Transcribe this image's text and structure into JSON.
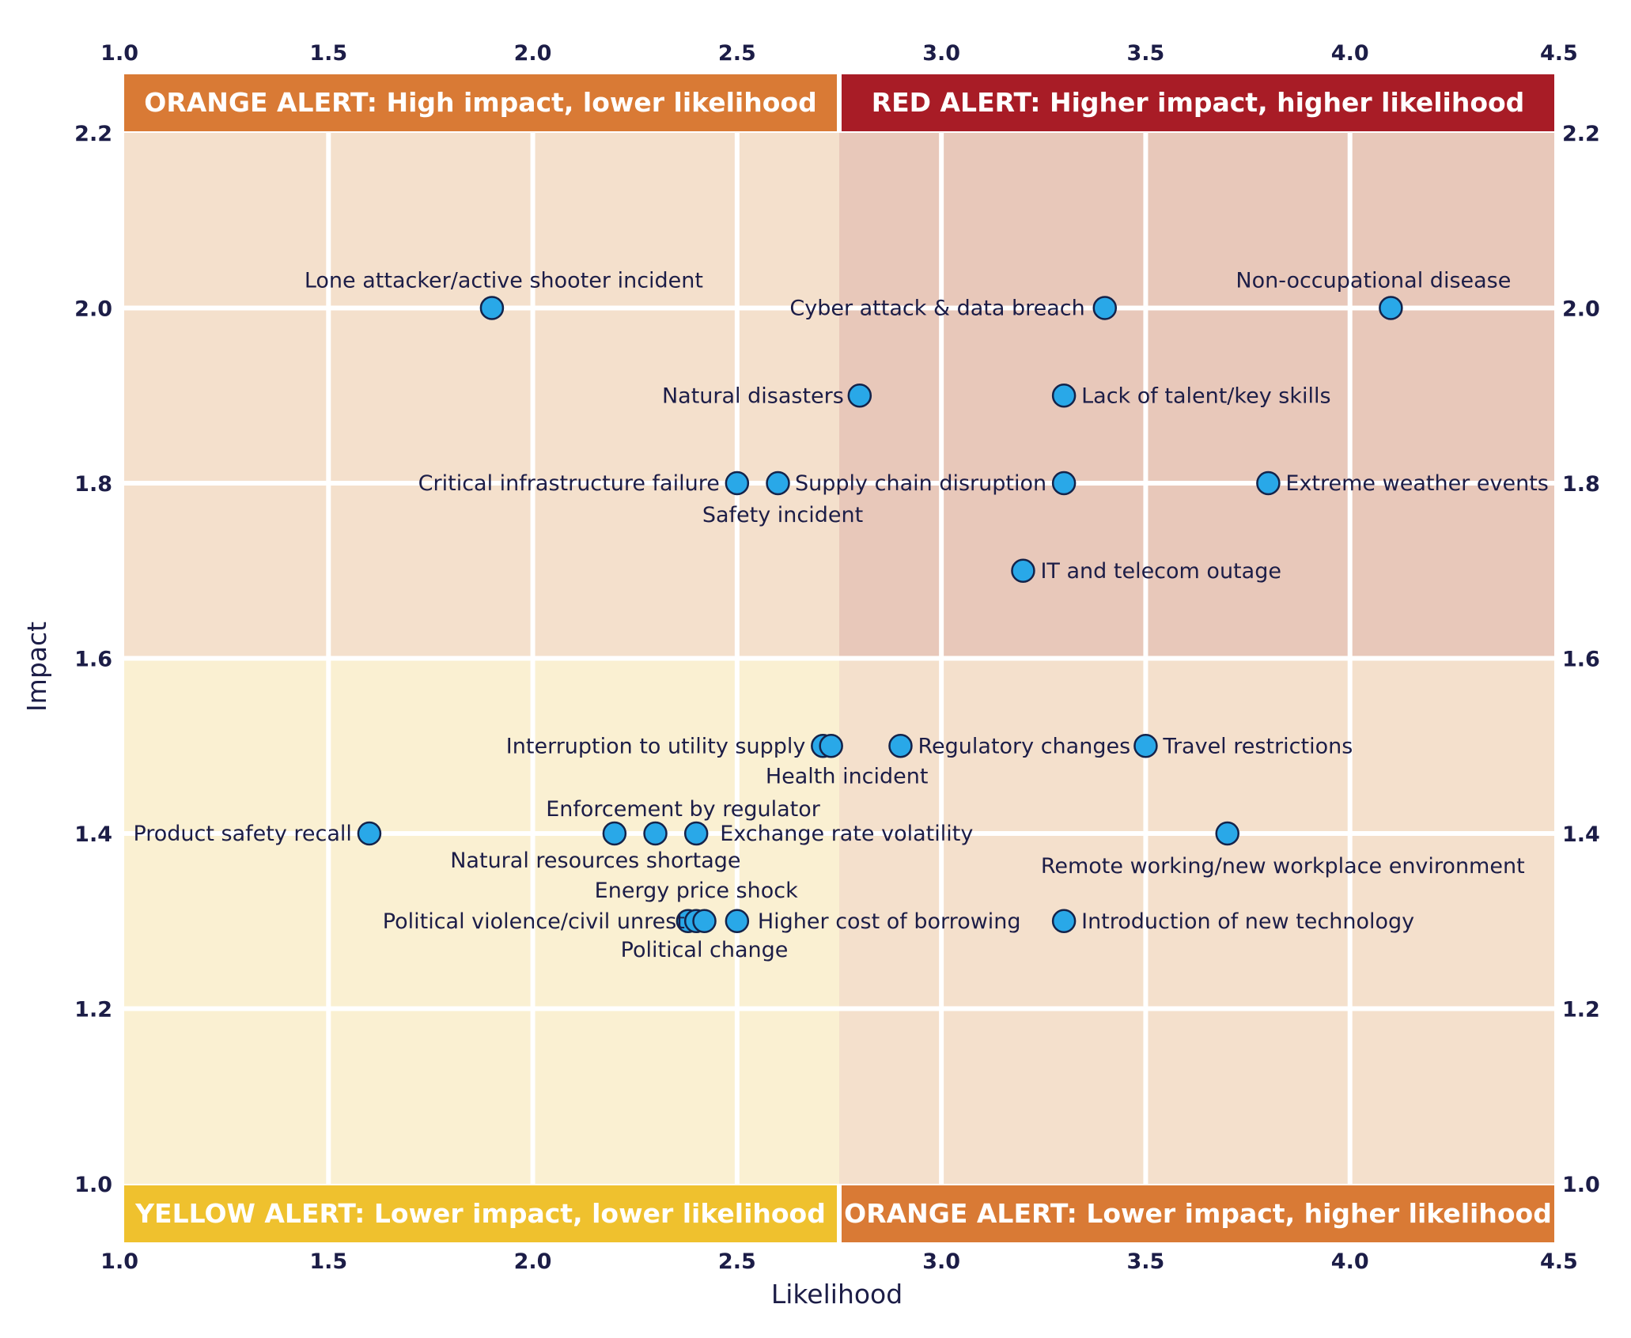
{
  "chart_data": {
    "type": "scatter",
    "xlabel": "Likelihood",
    "ylabel": "Impact",
    "xlim": [
      1.0,
      4.5
    ],
    "ylim": [
      1.0,
      2.2
    ],
    "x_ticks": [
      "1.0",
      "1.5",
      "2.0",
      "2.5",
      "3.0",
      "3.5",
      "4.0",
      "4.5"
    ],
    "y_ticks": [
      "1.0",
      "1.2",
      "1.4",
      "1.6",
      "1.8",
      "2.0",
      "2.2"
    ],
    "x_divider": 2.75,
    "y_divider": 1.6,
    "grid": true,
    "marker_color": "#29a8e8",
    "quadrants": [
      {
        "id": "top-left",
        "label": "ORANGE ALERT: High impact, lower likelihood",
        "banner_color": "#d97a35",
        "area_color": "#f4e0cc"
      },
      {
        "id": "top-right",
        "label": "RED ALERT: Higher impact, higher likelihood",
        "banner_color": "#a81c26",
        "area_color": "#e8c8ba"
      },
      {
        "id": "bottom-left",
        "label": "YELLOW ALERT: Lower impact, lower likelihood",
        "banner_color": "#efc12e",
        "area_color": "#faf0d2"
      },
      {
        "id": "bottom-right",
        "label": "ORANGE ALERT: Lower impact, higher likelihood",
        "banner_color": "#d97a35",
        "area_color": "#f4e0cc"
      }
    ],
    "points": [
      {
        "label": "Lone attacker/active shooter incident",
        "x": 1.9,
        "y": 2.0
      },
      {
        "label": "Cyber attack & data breach",
        "x": 3.4,
        "y": 2.0
      },
      {
        "label": "Non-occupational disease",
        "x": 4.1,
        "y": 2.0
      },
      {
        "label": "Natural disasters",
        "x": 2.8,
        "y": 1.9
      },
      {
        "label": "Lack of talent/key skills",
        "x": 3.3,
        "y": 1.9
      },
      {
        "label": "Critical infrastructure failure",
        "x": 2.5,
        "y": 1.8
      },
      {
        "label": "Safety incident",
        "x": 2.6,
        "y": 1.8
      },
      {
        "label": "Supply chain disruption",
        "x": 3.3,
        "y": 1.8
      },
      {
        "label": "Extreme weather events",
        "x": 3.8,
        "y": 1.8
      },
      {
        "label": "IT and telecom outage",
        "x": 3.2,
        "y": 1.7
      },
      {
        "label": "Interruption to utility supply",
        "x": 2.71,
        "y": 1.5
      },
      {
        "label": "Health incident",
        "x": 2.73,
        "y": 1.5
      },
      {
        "label": "Regulatory changes",
        "x": 2.9,
        "y": 1.5
      },
      {
        "label": "Travel restrictions",
        "x": 3.5,
        "y": 1.5
      },
      {
        "label": "Product safety recall",
        "x": 1.6,
        "y": 1.4
      },
      {
        "label": "Natural resources shortage",
        "x": 2.2,
        "y": 1.4
      },
      {
        "label": "Enforcement by regulator",
        "x": 2.3,
        "y": 1.4
      },
      {
        "label": "Exchange rate volatility",
        "x": 2.4,
        "y": 1.4
      },
      {
        "label": "Remote working/new workplace environment",
        "x": 3.7,
        "y": 1.4
      },
      {
        "label": "Political violence/civil unrest",
        "x": 2.38,
        "y": 1.3
      },
      {
        "label": "Energy price shock",
        "x": 2.4,
        "y": 1.3
      },
      {
        "label": "Political change",
        "x": 2.42,
        "y": 1.3
      },
      {
        "label": "Higher cost of borrowing",
        "x": 2.5,
        "y": 1.3
      },
      {
        "label": "Introduction of new technology",
        "x": 3.3,
        "y": 1.3
      }
    ]
  }
}
